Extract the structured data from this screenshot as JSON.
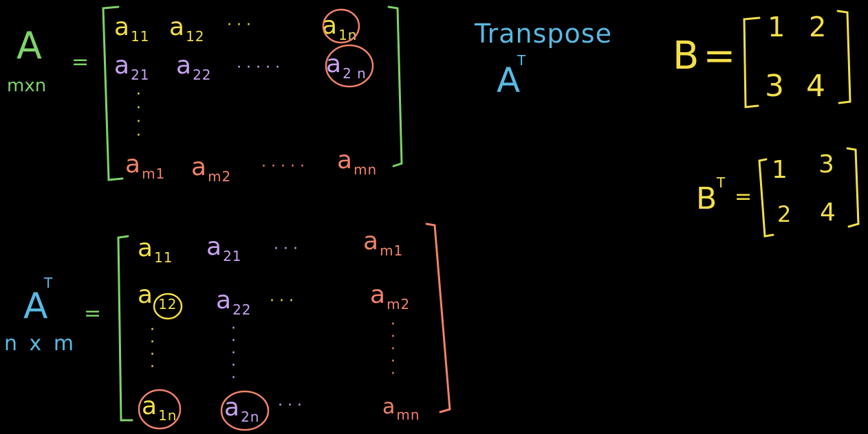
{
  "colors": {
    "background": "#000000",
    "green": "#7fd36a",
    "yellow": "#f3df4a",
    "purple": "#c9a3f2",
    "salmon": "#f0836a",
    "blue": "#5ab9e3"
  },
  "title": "Transpose",
  "title_symbol": {
    "base": "A",
    "sup": "T"
  },
  "matrix_a": {
    "name": "A",
    "dims": "mxn",
    "equals": "=",
    "row1": [
      {
        "base": "a",
        "sub": "11"
      },
      {
        "base": "a",
        "sub": "12"
      },
      {
        "text": "· · ·"
      },
      {
        "base": "a",
        "sub": "1n"
      }
    ],
    "row2": [
      {
        "base": "a",
        "sub": "21"
      },
      {
        "base": "a",
        "sub": "22"
      },
      {
        "text": "· · · · ·"
      },
      {
        "base": "a",
        "sub": "2 n"
      }
    ],
    "row3": [
      {
        "base": "a",
        "sub": "m1"
      },
      {
        "base": "a",
        "sub": "m2"
      },
      {
        "text": "· · · · ·"
      },
      {
        "base": "a",
        "sub": "mn"
      }
    ]
  },
  "matrix_at": {
    "name": "A",
    "sup": "T",
    "dims": "n x m",
    "equals": "=",
    "row1": [
      {
        "base": "a",
        "sub": "11"
      },
      {
        "base": "a",
        "sub": "21"
      },
      {
        "text": "· · ·"
      },
      {
        "base": "a",
        "sub": "m1"
      }
    ],
    "row2": [
      {
        "base": "a",
        "sub": "12"
      },
      {
        "base": "a",
        "sub": "22"
      },
      {
        "text": "· · ·"
      },
      {
        "base": "a",
        "sub": "m2"
      }
    ],
    "row3": [
      {
        "base": "a",
        "sub": "1n"
      },
      {
        "base": "a",
        "sub": "2n"
      },
      {
        "text": "· · ·"
      },
      {
        "base": "a",
        "sub": "mn"
      }
    ]
  },
  "matrix_b": {
    "name": "B",
    "equals": "=",
    "values": [
      "1",
      "2",
      "3",
      "4"
    ]
  },
  "matrix_bt": {
    "name": "B",
    "sup": "T",
    "equals": "=",
    "values": [
      "1",
      "3",
      "2",
      "4"
    ]
  }
}
